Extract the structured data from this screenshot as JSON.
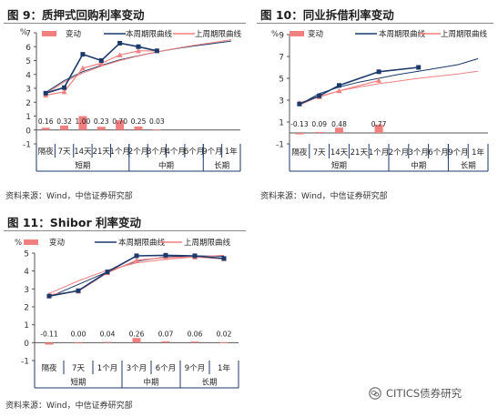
{
  "charts": [
    {
      "title": "图 9：质押式回购利率变动",
      "source": "资料来源：Wind，中信证券研究部",
      "unit": "%",
      "legend": [
        "变动",
        "本周期限曲线",
        "上周期限曲线"
      ],
      "categories": [
        "隔夜",
        "7天",
        "14天",
        "21天",
        "1个月",
        "2个月",
        "3个月",
        "4个月",
        "6个月",
        "9个月",
        "1年"
      ],
      "groups": [
        {
          "label": "短期",
          "span": 5
        },
        {
          "label": "中期",
          "span": 4
        },
        {
          "label": "长期",
          "span": 2
        }
      ],
      "changes": [
        0.16,
        0.32,
        1.0,
        0.23,
        0.7,
        0.25,
        0.03,
        null,
        null,
        null,
        null
      ],
      "change_labels": [
        "0.16",
        "0.32",
        "1.00",
        "0.23",
        "0.70",
        "0.25",
        "0.03",
        "",
        "",
        "",
        ""
      ]
    },
    {
      "title": "图 10：同业拆借利率变动",
      "source": "资料来源：Wind，中信证券研究部",
      "unit": "%",
      "legend": [
        "变动",
        "本周期限曲线",
        "上周期限曲线"
      ],
      "categories": [
        "隔夜",
        "7天",
        "14天",
        "21天",
        "1个月",
        "2个月",
        "3个月",
        "6个月",
        "9个月",
        "1年"
      ],
      "groups": [
        {
          "label": "短期",
          "span": 5
        },
        {
          "label": "中期",
          "span": 3
        },
        {
          "label": "长期",
          "span": 2
        }
      ],
      "changes": [
        -0.13,
        0.09,
        0.48,
        null,
        0.77,
        null,
        null,
        null,
        null,
        null
      ],
      "change_labels": [
        "-0.13",
        "0.09",
        "0.48",
        "",
        "0.77",
        "",
        "",
        "",
        "",
        ""
      ]
    },
    {
      "title": "图 11：Shibor 利率变动",
      "source": "资料来源：Wind，中信证券研究部",
      "unit": "%",
      "legend": [
        "变动",
        "本周期限曲线",
        "上周期限曲线"
      ],
      "categories": [
        "隔夜",
        "7天",
        "1个月",
        "3个月",
        "6个月",
        "9个月",
        "1年"
      ],
      "groups": [
        {
          "label": "短期",
          "span": 3
        },
        {
          "label": "中期",
          "span": 2
        },
        {
          "label": "长期",
          "span": 2
        }
      ],
      "changes": [
        -0.11,
        0.0,
        0.04,
        0.26,
        0.07,
        0.06,
        0.02
      ],
      "change_labels": [
        "-0.11",
        "0.00",
        "0.04",
        "0.26",
        "0.07",
        "0.06",
        "0.02"
      ]
    }
  ],
  "watermark": "CITICS债券研究",
  "chart_data": [
    {
      "type": "bar",
      "title": "图 9：质押式回购利率变动",
      "ylabel": "%",
      "ylim": [
        -1,
        7
      ],
      "yticks": [
        -1,
        0,
        1,
        2,
        3,
        4,
        5,
        6,
        7
      ],
      "categories": [
        "隔夜",
        "7天",
        "14天",
        "21天",
        "1个月",
        "2个月",
        "3个月",
        "4个月",
        "6个月",
        "9个月",
        "1年"
      ],
      "legend_position": "top",
      "series": [
        {
          "name": "变动",
          "type": "bar",
          "values": [
            0.16,
            0.32,
            1.0,
            0.23,
            0.7,
            0.25,
            0.03,
            null,
            null,
            null,
            null
          ],
          "color": "#f08080"
        },
        {
          "name": "本周期限曲线",
          "type": "line",
          "values": [
            2.65,
            3.05,
            5.45,
            5.0,
            6.25,
            6.0,
            5.7,
            null,
            null,
            null,
            null
          ],
          "color": "#1b3a6b"
        },
        {
          "name": "上周期限曲线",
          "type": "line",
          "values": [
            2.5,
            2.75,
            4.45,
            4.8,
            5.4,
            5.7,
            5.7,
            null,
            null,
            null,
            null
          ],
          "color": "#f08080"
        }
      ],
      "trend_lines": [
        {
          "series": "本周期限曲线",
          "color": "#1b3a6b",
          "points": [
            [
              1,
              2.7
            ],
            [
              2,
              3.55
            ],
            [
              3,
              4.2
            ],
            [
              4,
              4.65
            ],
            [
              5,
              5.05
            ],
            [
              6,
              5.35
            ],
            [
              7,
              5.62
            ],
            [
              8,
              5.85
            ],
            [
              9,
              6.05
            ],
            [
              10,
              6.22
            ],
            [
              11,
              6.4
            ]
          ]
        },
        {
          "series": "上周期限曲线",
          "color": "#f08080",
          "points": [
            [
              1,
              2.6
            ],
            [
              2,
              3.45
            ],
            [
              3,
              4.1
            ],
            [
              4,
              4.6
            ],
            [
              5,
              5.0
            ],
            [
              6,
              5.33
            ],
            [
              7,
              5.62
            ],
            [
              8,
              5.87
            ],
            [
              9,
              6.1
            ],
            [
              10,
              6.3
            ],
            [
              11,
              6.5
            ]
          ]
        }
      ]
    },
    {
      "type": "bar",
      "title": "图 10：同业拆借利率变动",
      "ylabel": "%",
      "ylim": [
        -1,
        9
      ],
      "yticks": [
        -1,
        1,
        3,
        5,
        7,
        9
      ],
      "categories": [
        "隔夜",
        "7天",
        "14天",
        "21天",
        "1个月",
        "2个月",
        "3个月",
        "6个月",
        "9个月",
        "1年"
      ],
      "legend_position": "top",
      "series": [
        {
          "name": "变动",
          "type": "bar",
          "values": [
            -0.13,
            0.09,
            0.48,
            null,
            0.77,
            null,
            null,
            null,
            null,
            null
          ],
          "color": "#f08080"
        },
        {
          "name": "本周期限曲线",
          "type": "line",
          "values": [
            2.65,
            3.4,
            4.35,
            null,
            5.6,
            null,
            6.0,
            null,
            null,
            null
          ],
          "color": "#1b3a6b"
        },
        {
          "name": "上周期限曲线",
          "type": "line",
          "values": [
            2.75,
            3.3,
            3.85,
            null,
            4.8,
            null,
            null,
            null,
            null,
            null
          ],
          "color": "#f08080"
        }
      ],
      "trend_lines": [
        {
          "series": "本周期限曲线",
          "color": "#1b3a6b",
          "points": [
            [
              1,
              2.6
            ],
            [
              2,
              3.6
            ],
            [
              3,
              4.2
            ],
            [
              4,
              4.65
            ],
            [
              5,
              5.0
            ],
            [
              6,
              5.35
            ],
            [
              7,
              5.65
            ],
            [
              8,
              5.95
            ],
            [
              9,
              6.25
            ],
            [
              10,
              6.8
            ]
          ]
        },
        {
          "series": "上周期限曲线",
          "color": "#f08080",
          "points": [
            [
              1,
              2.55
            ],
            [
              2,
              3.35
            ],
            [
              3,
              3.85
            ],
            [
              4,
              4.2
            ],
            [
              5,
              4.5
            ],
            [
              6,
              4.75
            ],
            [
              7,
              5.0
            ],
            [
              8,
              5.2
            ],
            [
              9,
              5.4
            ],
            [
              10,
              5.65
            ]
          ]
        }
      ]
    },
    {
      "type": "bar",
      "title": "图 11：Shibor 利率变动",
      "ylabel": "%",
      "ylim": [
        -1,
        5
      ],
      "yticks": [
        -1,
        0,
        1,
        2,
        3,
        4,
        5
      ],
      "categories": [
        "隔夜",
        "7天",
        "1个月",
        "3个月",
        "6个月",
        "9个月",
        "1年"
      ],
      "legend_position": "top",
      "series": [
        {
          "name": "变动",
          "type": "bar",
          "values": [
            -0.11,
            0.0,
            0.04,
            0.26,
            0.07,
            0.06,
            0.02
          ],
          "color": "#f08080"
        },
        {
          "name": "本周期限曲线",
          "type": "line",
          "values": [
            2.6,
            2.9,
            3.95,
            4.85,
            4.88,
            4.85,
            4.7
          ],
          "color": "#1b3a6b"
        },
        {
          "name": "上周期限曲线",
          "type": "line",
          "values": [
            2.67,
            2.87,
            3.9,
            4.6,
            4.75,
            4.78,
            4.68
          ],
          "color": "#f08080"
        }
      ],
      "trend_lines": [
        {
          "series": "本周期限曲线",
          "color": "#1b3a6b",
          "points": [
            [
              1,
              2.55
            ],
            [
              2,
              3.25
            ],
            [
              3,
              3.95
            ],
            [
              4,
              4.55
            ],
            [
              5,
              4.78
            ],
            [
              6,
              4.85
            ],
            [
              7,
              4.82
            ]
          ]
        },
        {
          "series": "上周期限曲线",
          "color": "#f08080",
          "points": [
            [
              1,
              2.75
            ],
            [
              2,
              3.45
            ],
            [
              3,
              4.05
            ],
            [
              4,
              4.45
            ],
            [
              5,
              4.65
            ],
            [
              6,
              4.78
            ],
            [
              7,
              4.88
            ]
          ]
        }
      ]
    }
  ]
}
